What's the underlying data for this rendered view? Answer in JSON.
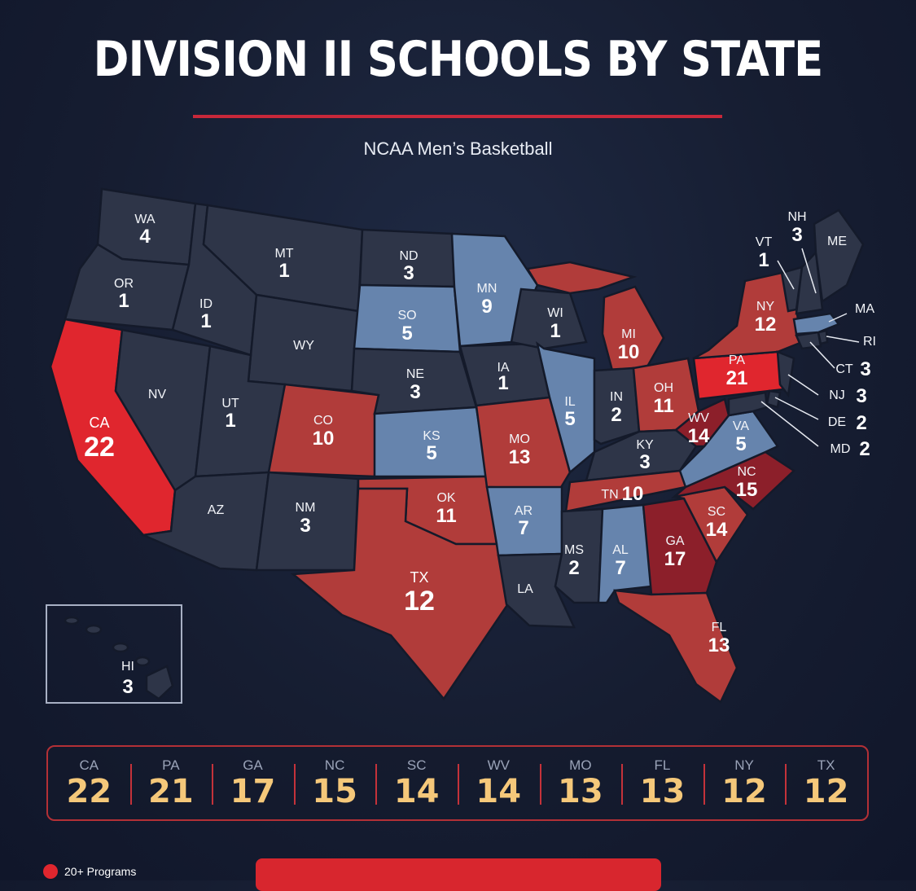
{
  "title": "DIVISION II SCHOOLS BY STATE",
  "subtitle": "NCAA Men’s Basketball",
  "colors": {
    "twenty_plus": "#e0262e",
    "high": "#b13c3a",
    "highest_tier_dark": "#8c1f2a",
    "mid": "#6684ad",
    "low": "#2e3548",
    "accent_gold": "#f5c87a"
  },
  "states": {
    "WA": {
      "label": "WA",
      "count": "4"
    },
    "OR": {
      "label": "OR",
      "count": "1"
    },
    "CA": {
      "label": "CA",
      "count": "22"
    },
    "ID": {
      "label": "ID",
      "count": "1"
    },
    "NV": {
      "label": "NV"
    },
    "MT": {
      "label": "MT",
      "count": "1"
    },
    "WY": {
      "label": "WY"
    },
    "UT": {
      "label": "UT",
      "count": "1"
    },
    "AZ": {
      "label": "AZ"
    },
    "CO": {
      "label": "CO",
      "count": "10"
    },
    "NM": {
      "label": "NM",
      "count": "3"
    },
    "ND": {
      "label": "ND",
      "count": "3"
    },
    "SD": {
      "label": "SO",
      "count": "5"
    },
    "NE": {
      "label": "NE",
      "count": "3"
    },
    "KS": {
      "label": "KS",
      "count": "5"
    },
    "OK": {
      "label": "OK",
      "count": "11"
    },
    "TX": {
      "label": "TX",
      "count": "12"
    },
    "MN": {
      "label": "MN",
      "count": "9"
    },
    "IA": {
      "label": "IA",
      "count": "1"
    },
    "MO": {
      "label": "MO",
      "count": "13"
    },
    "AR": {
      "label": "AR",
      "count": "7"
    },
    "LA": {
      "label": "LA"
    },
    "WI": {
      "label": "WI",
      "count": "1"
    },
    "IL": {
      "label": "IL",
      "count": "5"
    },
    "MI": {
      "label": "MI",
      "count": "10"
    },
    "IN": {
      "label": "IN",
      "count": "2"
    },
    "OH": {
      "label": "OH",
      "count": "11"
    },
    "KY": {
      "label": "KY",
      "count": "3"
    },
    "TN": {
      "label": "TN",
      "count": "10"
    },
    "MS": {
      "label": "MS",
      "count": "2"
    },
    "AL": {
      "label": "AL",
      "count": "7"
    },
    "GA": {
      "label": "GA",
      "count": "17"
    },
    "FL": {
      "label": "FL",
      "count": "13"
    },
    "SC": {
      "label": "SC",
      "count": "14"
    },
    "NC": {
      "label": "NC",
      "count": "15"
    },
    "VA": {
      "label": "VA",
      "count": "5"
    },
    "WV": {
      "label": "WV",
      "count": "14"
    },
    "PA": {
      "label": "PA",
      "count": "21"
    },
    "NY": {
      "label": "NY",
      "count": "12"
    },
    "VT": {
      "label": "VT",
      "count": "1"
    },
    "NH": {
      "label": "NH",
      "count": "3"
    },
    "ME": {
      "label": "ME"
    },
    "MA": {
      "label": "MA"
    },
    "RI": {
      "label": "RI"
    },
    "CT": {
      "label": "CT",
      "count": "3"
    },
    "NJ": {
      "label": "NJ",
      "count": "3"
    },
    "DE": {
      "label": "DE",
      "count": "2"
    },
    "MD": {
      "label": "MD",
      "count": "2"
    },
    "HI": {
      "label": "HI",
      "count": "3"
    }
  },
  "top10": [
    {
      "state": "CA",
      "count": "22"
    },
    {
      "state": "PA",
      "count": "21"
    },
    {
      "state": "GA",
      "count": "17"
    },
    {
      "state": "NC",
      "count": "15"
    },
    {
      "state": "SC",
      "count": "14"
    },
    {
      "state": "WV",
      "count": "14"
    },
    {
      "state": "MO",
      "count": "13"
    },
    {
      "state": "FL",
      "count": "13"
    },
    {
      "state": "NY",
      "count": "12"
    },
    {
      "state": "TX",
      "count": "12"
    }
  ],
  "legend": {
    "twenty_plus_label": "20+ Programs"
  }
}
